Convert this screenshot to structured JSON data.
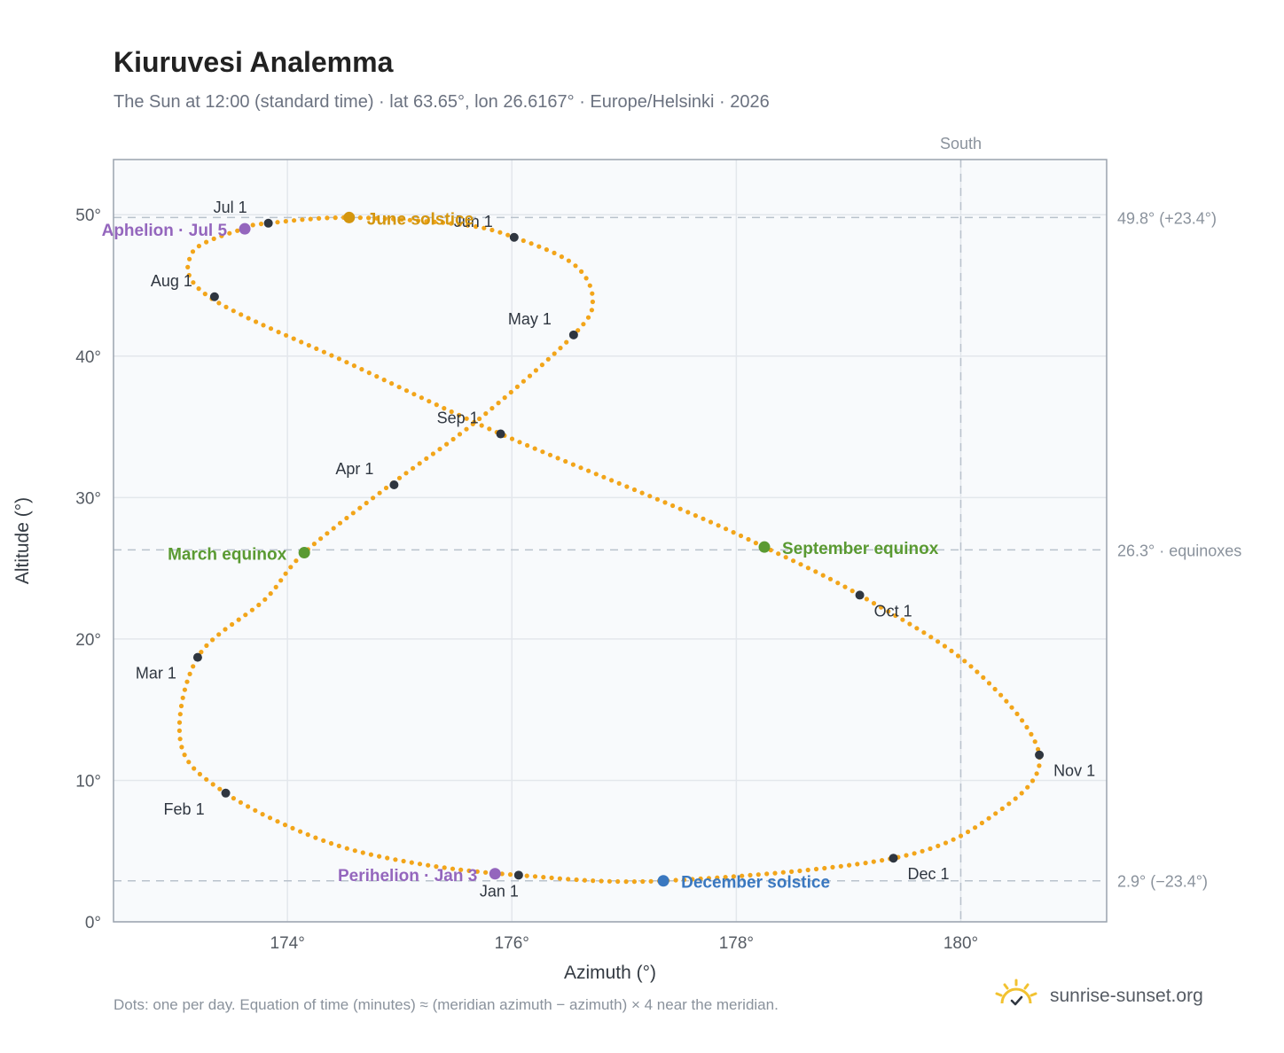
{
  "header": {
    "title": "Kiuruvesi Analemma",
    "subtitle": "The Sun at 12:00 (standard time) · lat 63.65°, lon 26.6167° · Europe/Helsinki · 2026"
  },
  "footer": {
    "note": "Dots: one per day. Equation of time (minutes) ≈ (meridian azimuth − azimuth) × 4 near the meridian.",
    "brand": "sunrise-sunset.org"
  },
  "colors": {
    "curve": "#f2a51a",
    "month_marker": "#2f3640",
    "solstice_june": "#d4960f",
    "equinox": "#5a9a32",
    "solstice_december": "#3a78c0",
    "apsis": "#9466bd",
    "grid": "#e3e7ec",
    "frame": "#9aa3ae",
    "plot_bg": "#f8fafc",
    "reference_line": "#b9c2cc"
  },
  "chart_data": {
    "type": "scatter",
    "xlabel": "Azimuth (°)",
    "ylabel": "Altitude (°)",
    "xlim": [
      172.45,
      181.3
    ],
    "ylim": [
      0,
      53.9
    ],
    "x_ticks": [
      174,
      176,
      178,
      180
    ],
    "x_tick_labels": [
      "174°",
      "176°",
      "178°",
      "180°"
    ],
    "y_ticks": [
      0,
      10,
      20,
      30,
      40,
      50
    ],
    "y_tick_labels": [
      "0°",
      "10°",
      "20°",
      "30°",
      "40°",
      "50°"
    ],
    "grid": true,
    "south_line": {
      "x": 180,
      "label": "South"
    },
    "reference_lines": [
      {
        "y": 49.8,
        "label": "49.8° (+23.4°)"
      },
      {
        "y": 26.3,
        "label": "26.3° · equinoxes"
      },
      {
        "y": 2.9,
        "label": "2.9° (−23.4°)"
      }
    ],
    "series": [
      {
        "points": [
          [
            176.06,
            3.3
          ],
          [
            175.1,
            4.2
          ],
          [
            174.3,
            5.8
          ],
          [
            173.45,
            9.1
          ],
          [
            173.05,
            12.6
          ],
          [
            173.2,
            18.7
          ],
          [
            173.8,
            22.8
          ],
          [
            174.15,
            26.1
          ],
          [
            174.9,
            30.8
          ],
          [
            175.7,
            35.5
          ],
          [
            176.55,
            41.5
          ],
          [
            176.72,
            44.0
          ],
          [
            176.55,
            46.5
          ],
          [
            176.02,
            48.4
          ],
          [
            175.55,
            49.3
          ],
          [
            174.55,
            49.8
          ],
          [
            173.83,
            49.4
          ],
          [
            173.6,
            49.0
          ],
          [
            173.15,
            47.3
          ],
          [
            173.3,
            44.2
          ],
          [
            174.6,
            39.3
          ],
          [
            175.9,
            34.5
          ],
          [
            177.5,
            29.2
          ],
          [
            178.25,
            26.5
          ],
          [
            179.1,
            23.1
          ],
          [
            180.1,
            18.0
          ],
          [
            180.7,
            11.8
          ],
          [
            180.3,
            7.6
          ],
          [
            179.4,
            4.5
          ],
          [
            177.35,
            2.9
          ],
          [
            176.06,
            3.3
          ]
        ]
      }
    ],
    "month_markers": [
      {
        "label": "Jan 1",
        "x": 176.06,
        "y": 3.3
      },
      {
        "label": "Feb 1",
        "x": 173.45,
        "y": 9.1
      },
      {
        "label": "Mar 1",
        "x": 173.2,
        "y": 18.7
      },
      {
        "label": "Apr 1",
        "x": 174.95,
        "y": 30.9
      },
      {
        "label": "May 1",
        "x": 176.55,
        "y": 41.5
      },
      {
        "label": "Jun 1",
        "x": 176.02,
        "y": 48.4
      },
      {
        "label": "Jul 1",
        "x": 173.83,
        "y": 49.4
      },
      {
        "label": "Aug 1",
        "x": 173.35,
        "y": 44.2
      },
      {
        "label": "Sep 1",
        "x": 175.9,
        "y": 34.5
      },
      {
        "label": "Oct 1",
        "x": 179.1,
        "y": 23.1
      },
      {
        "label": "Nov 1",
        "x": 180.7,
        "y": 11.8
      },
      {
        "label": "Dec 1",
        "x": 179.4,
        "y": 4.5
      }
    ],
    "events": [
      {
        "label": "June solstice",
        "x": 174.55,
        "y": 49.8,
        "kind": "solstice_june"
      },
      {
        "label": "March equinox",
        "x": 174.15,
        "y": 26.1,
        "kind": "equinox"
      },
      {
        "label": "September equinox",
        "x": 178.25,
        "y": 26.5,
        "kind": "equinox"
      },
      {
        "label": "December solstice",
        "x": 177.35,
        "y": 2.9,
        "kind": "solstice_december"
      },
      {
        "label": "Aphelion · Jul 5",
        "x": 173.62,
        "y": 49.0,
        "kind": "apsis"
      },
      {
        "label": "Perihelion · Jan 3",
        "x": 175.85,
        "y": 3.4,
        "kind": "apsis"
      }
    ]
  }
}
